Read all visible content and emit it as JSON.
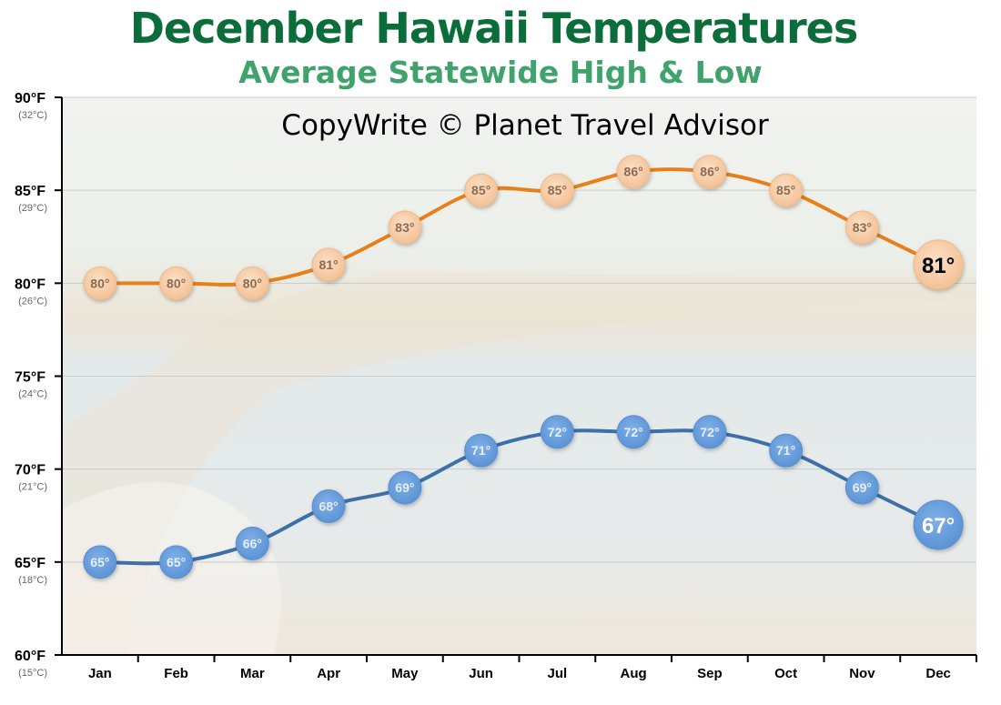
{
  "colors": {
    "title": "#0b6e3a",
    "subtitle": "#3fa36b",
    "high_line": "#e8801a",
    "high_marker": "#f7cda8",
    "high_label": "#8a6a50",
    "low_line": "#3d6fa8",
    "low_marker": "#6a9fdc",
    "low_label": "#e6eef8",
    "sky": "#e8eef0",
    "sand": "#ece3d4",
    "sea": "#dfe6e8"
  },
  "watermark": "CopyWrite © Planet Travel Advisor",
  "chart_data": {
    "type": "line",
    "title": "December Hawaii Temperatures",
    "subtitle": "Average Statewide High & Low",
    "categories": [
      "Jan",
      "Feb",
      "Mar",
      "Apr",
      "May",
      "Jun",
      "Jul",
      "Aug",
      "Sep",
      "Oct",
      "Nov",
      "Dec"
    ],
    "series": [
      {
        "values": [
          80,
          80,
          80,
          81,
          83,
          85,
          85,
          86,
          86,
          85,
          83,
          81
        ],
        "labels": [
          "80°",
          "80°",
          "80°",
          "81°",
          "83°",
          "85°",
          "85°",
          "86°",
          "86°",
          "85°",
          "83°",
          "81°"
        ],
        "highlight_index": 11
      },
      {
        "values": [
          65,
          65,
          66,
          68,
          69,
          71,
          72,
          72,
          72,
          71,
          69,
          67
        ],
        "labels": [
          "65°",
          "65°",
          "66°",
          "68°",
          "69°",
          "71°",
          "72°",
          "72°",
          "72°",
          "71°",
          "69°",
          "67°"
        ],
        "highlight_index": 11
      }
    ],
    "ylim": [
      60,
      90
    ],
    "y_ticks": [
      {
        "value": 90,
        "label": "90°F",
        "sub": "(32°C)"
      },
      {
        "value": 85,
        "label": "85°F",
        "sub": "(29°C)"
      },
      {
        "value": 80,
        "label": "80°F",
        "sub": "(26°C)"
      },
      {
        "value": 75,
        "label": "75°F",
        "sub": "(24°C)"
      },
      {
        "value": 70,
        "label": "70°F",
        "sub": "(21°C)"
      },
      {
        "value": 65,
        "label": "65°F",
        "sub": "(18°C)"
      },
      {
        "value": 60,
        "label": "60°F",
        "sub": "(15°C)"
      }
    ],
    "grid": true,
    "legend": "none"
  }
}
